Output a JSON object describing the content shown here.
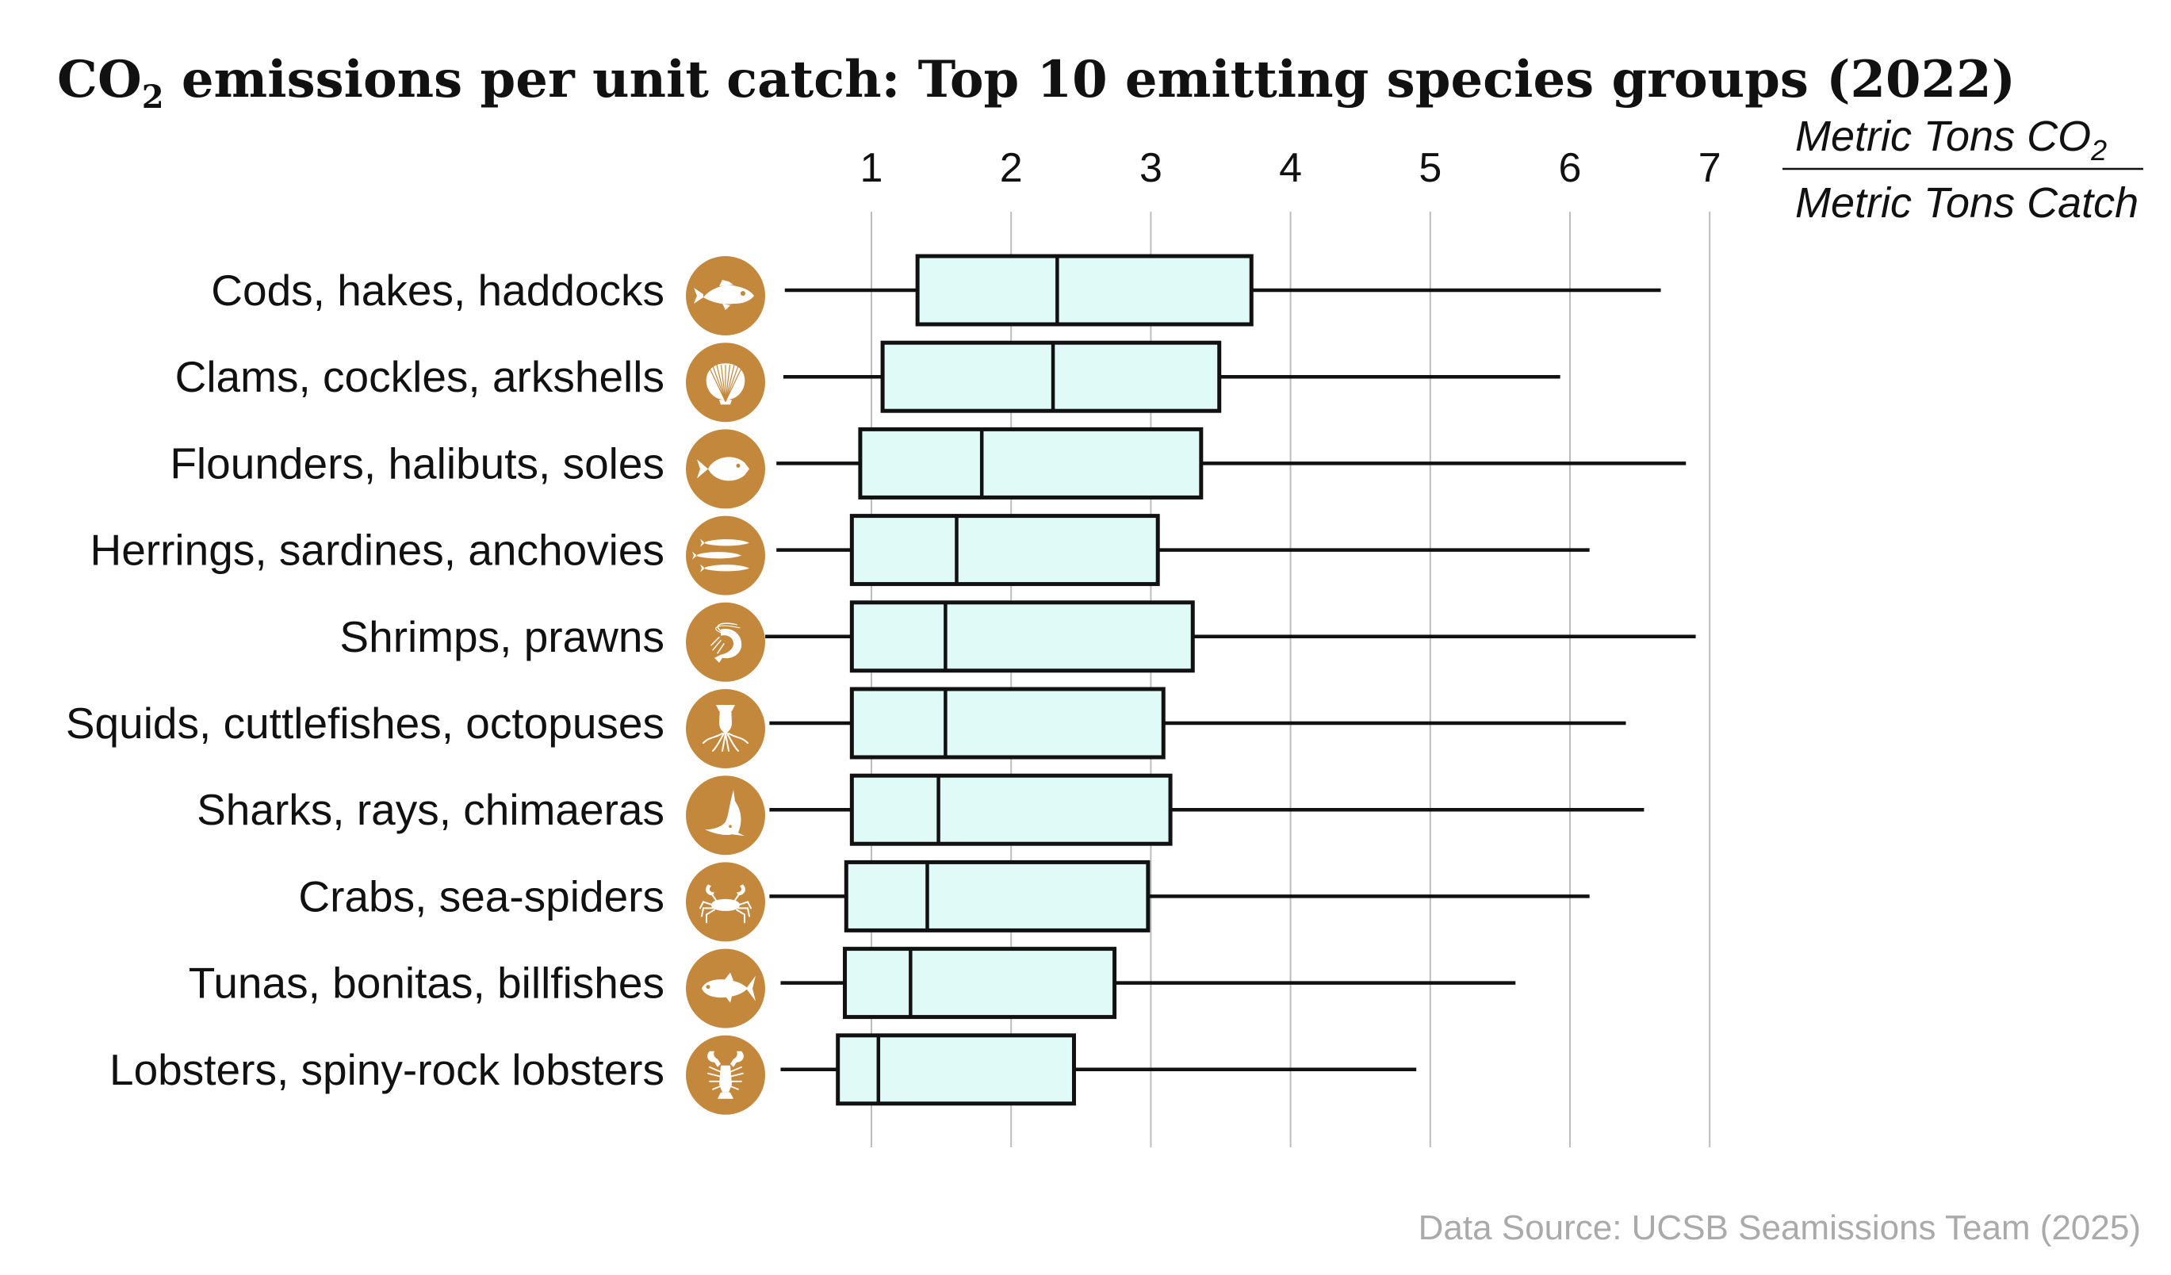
{
  "title": {
    "prefix": "CO",
    "subscript": "2",
    "rest": " emissions per unit catch: Top 10 emitting species groups (2022)"
  },
  "unit_label": {
    "numerator_text": "Metric Tons CO",
    "numerator_subscript": "2",
    "denominator_text": "Metric Tons Catch"
  },
  "source": "Data Source: UCSB Seamissions Team (2025)",
  "colors": {
    "box_fill": "#E0FAF7",
    "box_stroke": "#111111",
    "icon_circle": "#C3883C",
    "grid": "#BDBDBD",
    "source_text": "#AAAAAA"
  },
  "chart_data": {
    "type": "boxplot",
    "orientation": "horizontal",
    "title": "CO2 emissions per unit catch: Top 10 emitting species groups (2022)",
    "xlabel": "Metric Tons CO2 / Metric Tons Catch",
    "ylabel": "",
    "x_ticks": [
      1,
      2,
      3,
      4,
      5,
      6,
      7
    ],
    "xlim": [
      0.3,
      7
    ],
    "grid": true,
    "categories": [
      "Cods, hakes, haddocks",
      "Clams, cockles, arkshells",
      "Flounders, halibuts, soles",
      "Herrings, sardines, anchovies",
      "Shrimps, prawns",
      "Squids, cuttlefishes, octopuses",
      "Sharks, rays, chimaeras",
      "Crabs, sea-spiders",
      "Tunas, bonitas, billfishes",
      "Lobsters, spiny-rock lobsters"
    ],
    "icons": [
      "cod-fish-icon",
      "clam-shell-icon",
      "flounder-fish-icon",
      "herring-fish-icon",
      "shrimp-icon",
      "squid-icon",
      "shark-icon",
      "crab-icon",
      "tuna-icon",
      "lobster-icon"
    ],
    "series": [
      {
        "name": "Cods, hakes, haddocks",
        "whisker_low": 0.38,
        "q1": 1.33,
        "median": 2.33,
        "q3": 3.72,
        "whisker_high": 6.65
      },
      {
        "name": "Clams, cockles, arkshells",
        "whisker_low": 0.37,
        "q1": 1.08,
        "median": 2.3,
        "q3": 3.49,
        "whisker_high": 5.93
      },
      {
        "name": "Flounders, halibuts, soles",
        "whisker_low": 0.32,
        "q1": 0.92,
        "median": 1.79,
        "q3": 3.36,
        "whisker_high": 6.83
      },
      {
        "name": "Herrings, sardines, anchovies",
        "whisker_low": 0.32,
        "q1": 0.86,
        "median": 1.61,
        "q3": 3.05,
        "whisker_high": 6.14
      },
      {
        "name": "Shrimps, prawns",
        "whisker_low": 0.24,
        "q1": 0.86,
        "median": 1.53,
        "q3": 3.3,
        "whisker_high": 6.9
      },
      {
        "name": "Squids, cuttlefishes, octopuses",
        "whisker_low": 0.27,
        "q1": 0.86,
        "median": 1.53,
        "q3": 3.09,
        "whisker_high": 6.4
      },
      {
        "name": "Sharks, rays, chimaeras",
        "whisker_low": 0.27,
        "q1": 0.86,
        "median": 1.48,
        "q3": 3.14,
        "whisker_high": 6.53
      },
      {
        "name": "Crabs, sea-spiders",
        "whisker_low": 0.27,
        "q1": 0.82,
        "median": 1.4,
        "q3": 2.98,
        "whisker_high": 6.14
      },
      {
        "name": "Tunas, bonitas, billfishes",
        "whisker_low": 0.35,
        "q1": 0.81,
        "median": 1.28,
        "q3": 2.74,
        "whisker_high": 5.61
      },
      {
        "name": "Lobsters, spiny-rock lobsters",
        "whisker_low": 0.35,
        "q1": 0.76,
        "median": 1.05,
        "q3": 2.45,
        "whisker_high": 4.9
      }
    ]
  }
}
